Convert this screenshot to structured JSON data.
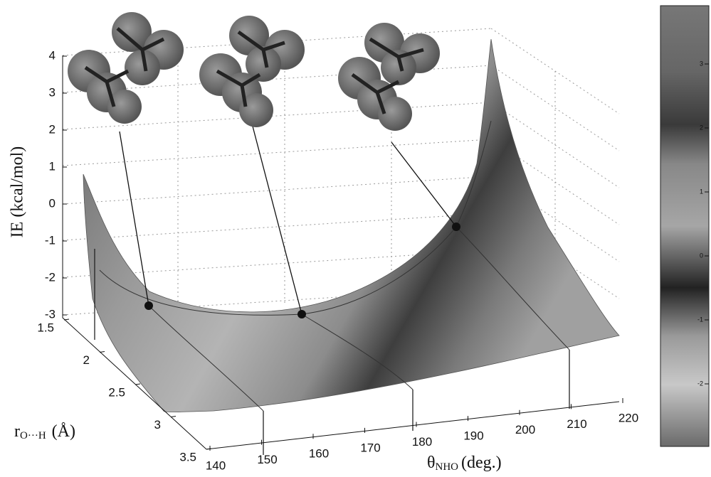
{
  "chart_data": {
    "type": "surface3d",
    "z_label": "IE (kcal/mol)",
    "y_label": {
      "symbol": "r",
      "subscript": "O···H",
      "unit": "(Å)"
    },
    "x_label": {
      "symbol": "θ",
      "subscript": "NHO",
      "unit": "(deg.)"
    },
    "zlim": [
      -3,
      4
    ],
    "zticks": [
      -3,
      -2,
      -1,
      0,
      1,
      2,
      3,
      4
    ],
    "ylim": [
      1.5,
      3.5
    ],
    "yticks": [
      1.5,
      2,
      2.5,
      3,
      3.5
    ],
    "xlim": [
      140,
      220
    ],
    "xticks": [
      140,
      150,
      160,
      170,
      180,
      190,
      200,
      210,
      220
    ],
    "colorbar_ticks": [
      3,
      2,
      1,
      0,
      -1,
      -2
    ]
  }
}
